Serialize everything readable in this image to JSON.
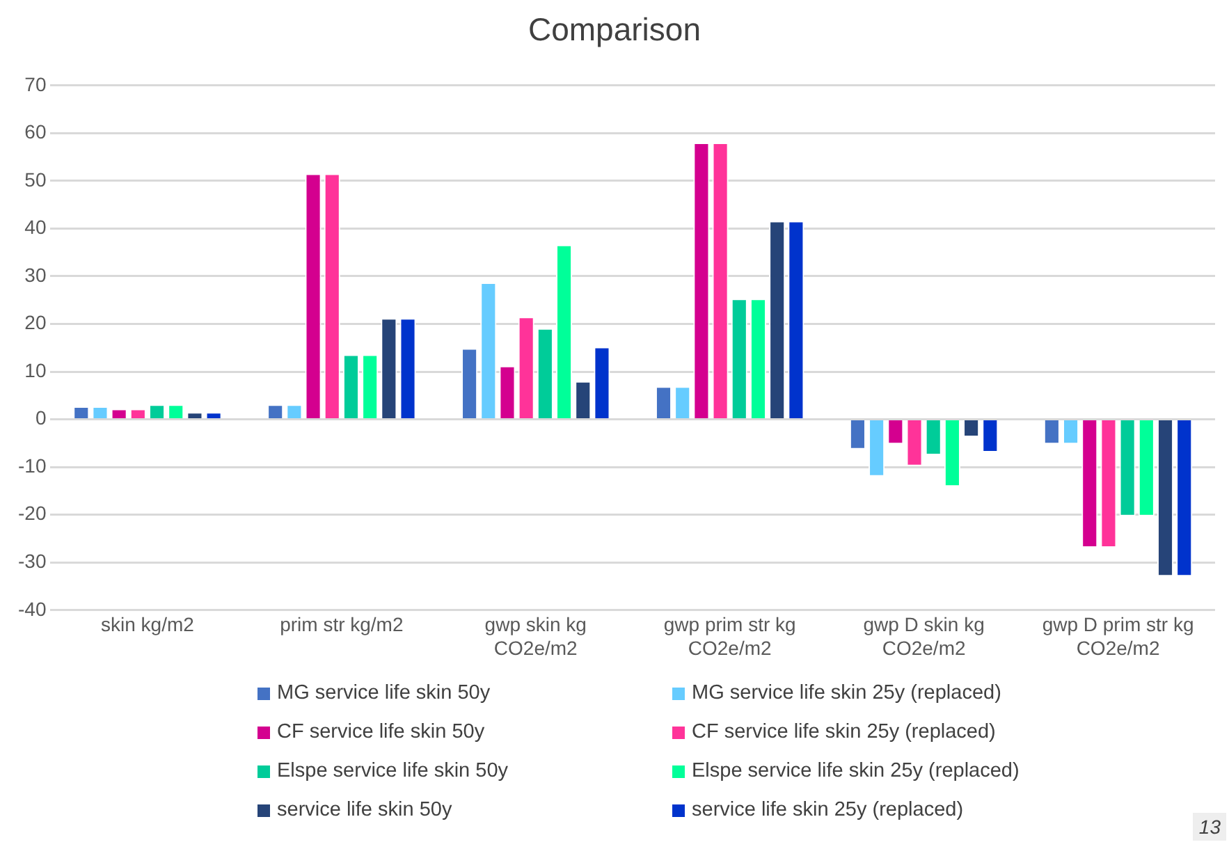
{
  "chart_data": {
    "type": "bar",
    "title": "Comparison",
    "categories": [
      "skin kg/m2",
      "prim str kg/m2",
      "gwp skin kg CO2e/m2",
      "gwp prim str kg CO2e/m2",
      "gwp D skin kg CO2e/m2",
      "gwp D prim str kg CO2e/m2"
    ],
    "series": [
      {
        "name": "MG service life skin 50y",
        "color": "#4472c4",
        "values": [
          2.7,
          3.1,
          14.9,
          6.9,
          -6.3,
          -5.2
        ]
      },
      {
        "name": "MG service life skin 25y (replaced)",
        "color": "#66ccff",
        "values": [
          2.7,
          3.1,
          28.7,
          6.9,
          -12.0,
          -5.2
        ]
      },
      {
        "name": "CF service life skin 50y",
        "color": "#d4008f",
        "values": [
          2.2,
          51.5,
          11.2,
          58.0,
          -5.2,
          -26.9
        ]
      },
      {
        "name": "CF service life skin 25y (replaced)",
        "color": "#ff3399",
        "values": [
          2.2,
          51.5,
          21.5,
          58.0,
          -9.8,
          -26.9
        ]
      },
      {
        "name": "Elspe service life skin 50y",
        "color": "#00cc99",
        "values": [
          3.1,
          13.6,
          19.1,
          25.3,
          -7.5,
          -20.3
        ]
      },
      {
        "name": "Elspe service life skin 25y (replaced)",
        "color": "#00ff99",
        "values": [
          3.1,
          13.6,
          36.6,
          25.3,
          -14.1,
          -20.3
        ]
      },
      {
        "name": "service life skin 50y",
        "color": "#264478",
        "values": [
          1.5,
          21.2,
          8.0,
          41.6,
          -3.7,
          -32.9
        ]
      },
      {
        "name": "service life skin 25y (replaced)",
        "color": "#0033cc",
        "values": [
          1.5,
          21.2,
          15.2,
          41.6,
          -6.9,
          -32.9
        ]
      }
    ],
    "ylim": [
      -40,
      70
    ],
    "yticks": [
      -40,
      -30,
      -20,
      -10,
      0,
      10,
      20,
      30,
      40,
      50,
      60,
      70
    ],
    "grid": "y",
    "legend": "bottom",
    "annotations": [
      "13"
    ]
  }
}
